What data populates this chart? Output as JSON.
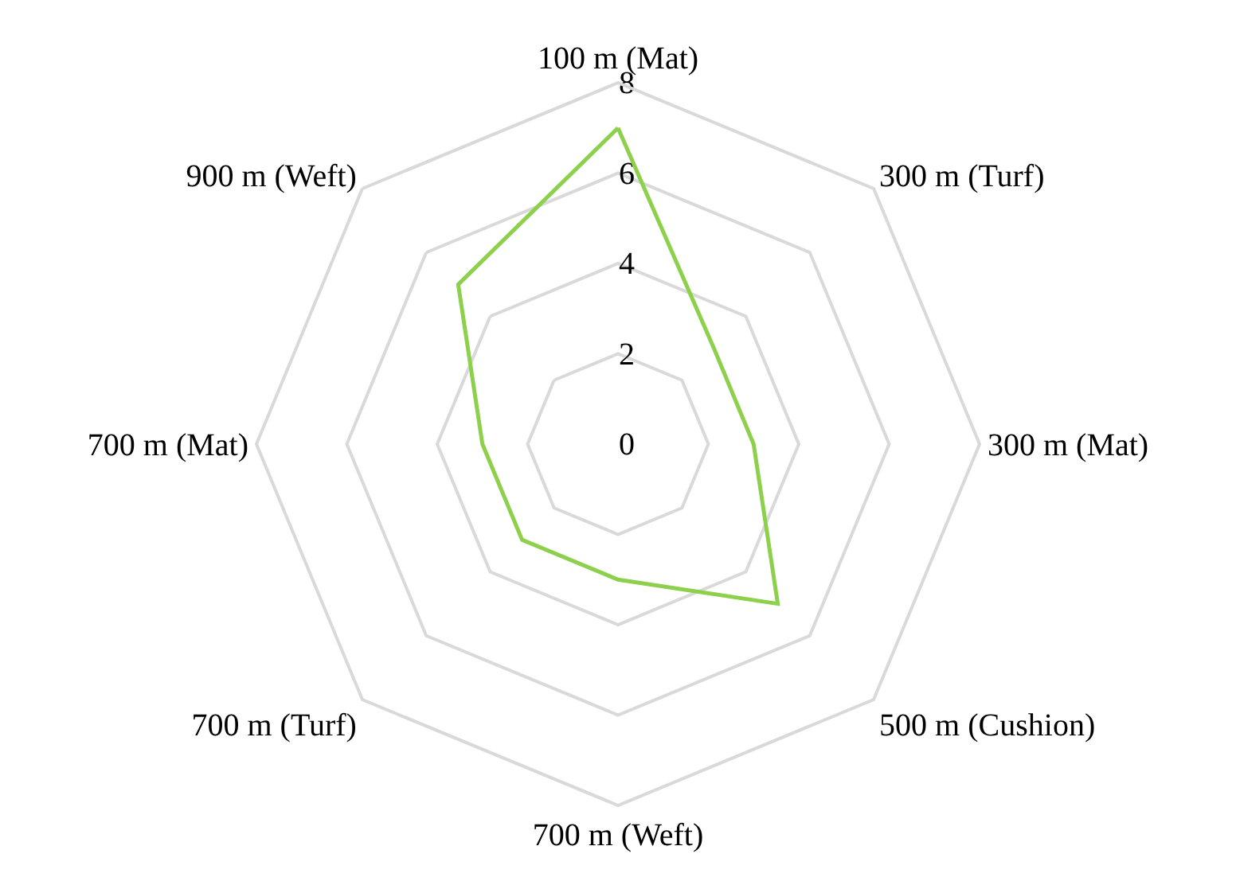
{
  "chart_data": {
    "type": "radar",
    "categories": [
      "100 m (Mat)",
      "300 m (Turf)",
      "300 m (Mat)",
      "500 m (Cushion)",
      "700 m (Weft)",
      "700 m (Turf)",
      "700 m (Mat)",
      "900 m (Weft)"
    ],
    "series": [
      {
        "color": "#8cd04b",
        "values": [
          7,
          3,
          3,
          5,
          3,
          3,
          3,
          5
        ]
      }
    ],
    "ylim": [
      0,
      8
    ],
    "yticks": [
      0,
      2,
      4,
      6,
      8
    ],
    "grid": true,
    "marker": "none",
    "line_style": "solid"
  }
}
